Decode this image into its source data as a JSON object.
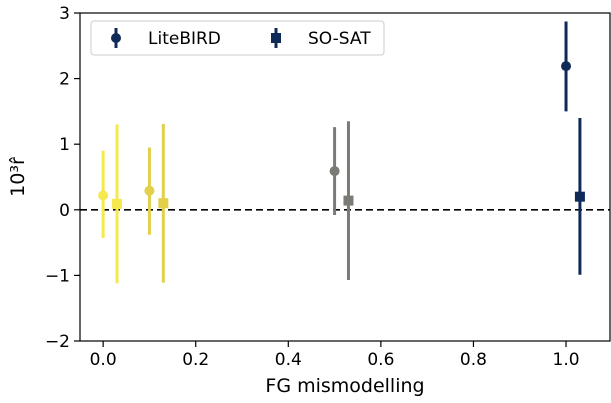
{
  "chart_data": {
    "type": "scatter",
    "xlabel": "FG mismodelling",
    "ylabel": "10³r̂",
    "xlim": [
      -0.05,
      1.095
    ],
    "ylim": [
      -2,
      3
    ],
    "xticks": [
      0.0,
      0.2,
      0.4,
      0.6,
      0.8,
      1.0
    ],
    "xtick_labels": [
      "0.0",
      "0.2",
      "0.4",
      "0.6",
      "0.8",
      "1.0"
    ],
    "yticks": [
      -2,
      -1,
      0,
      1,
      2,
      3
    ],
    "ytick_labels": [
      "−2",
      "−1",
      "0",
      "1",
      "2",
      "3"
    ],
    "grid": false,
    "legend_position": "top-left",
    "reference_line": {
      "y": 0,
      "style": "dashed",
      "color": "#000000"
    },
    "series": [
      {
        "name": "LiteBIRD",
        "marker": "circle",
        "points": [
          {
            "x": 0.0,
            "y": 0.22,
            "yerr_low": 0.65,
            "yerr_high": 0.68,
            "color": "#f5e94d"
          },
          {
            "x": 0.1,
            "y": 0.29,
            "yerr_low": 0.67,
            "yerr_high": 0.66,
            "color": "#e2cf4a"
          },
          {
            "x": 0.5,
            "y": 0.59,
            "yerr_low": 0.67,
            "yerr_high": 0.67,
            "color": "#7b7a76"
          },
          {
            "x": 1.0,
            "y": 2.19,
            "yerr_low": 0.69,
            "yerr_high": 0.68,
            "color": "#0f2a57"
          }
        ]
      },
      {
        "name": "SO-SAT",
        "marker": "square",
        "points": [
          {
            "x": 0.03,
            "y": 0.09,
            "yerr_low": 1.21,
            "yerr_high": 1.21,
            "color": "#f5e94d"
          },
          {
            "x": 0.13,
            "y": 0.1,
            "yerr_low": 1.21,
            "yerr_high": 1.21,
            "color": "#e2cf4a"
          },
          {
            "x": 0.53,
            "y": 0.14,
            "yerr_low": 1.21,
            "yerr_high": 1.21,
            "color": "#7b7a76"
          },
          {
            "x": 1.03,
            "y": 0.2,
            "yerr_low": 1.19,
            "yerr_high": 1.2,
            "color": "#0f2a57"
          }
        ]
      }
    ],
    "legend_color": "#0f2a57"
  }
}
